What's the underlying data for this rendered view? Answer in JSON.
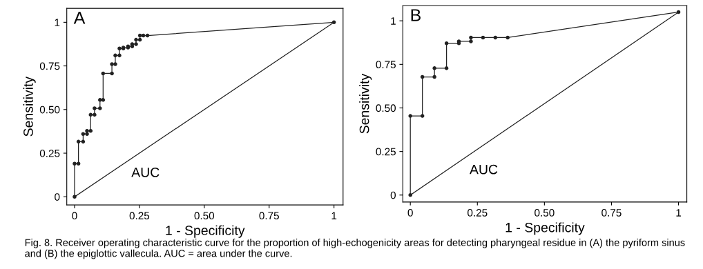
{
  "chart_data": [
    {
      "type": "line",
      "title": "A",
      "xlabel": "1 - Specificity",
      "ylabel": "Sensitivity",
      "series": [
        {
          "color": "#222222",
          "marker": "circle",
          "x": [
            0,
            0,
            0.015,
            0.015,
            0.033,
            0.033,
            0.048,
            0.048,
            0.062,
            0.062,
            0.077,
            0.077,
            0.098,
            0.098,
            0.11,
            0.11,
            0.144,
            0.144,
            0.157,
            0.157,
            0.173,
            0.173,
            0.188,
            0.188,
            0.206,
            0.206,
            0.222,
            0.222,
            0.237,
            0.237,
            0.252,
            0.252,
            0.265,
            0.281,
            1
          ],
          "values": [
            0,
            0.19,
            0.19,
            0.316,
            0.316,
            0.36,
            0.36,
            0.378,
            0.378,
            0.47,
            0.47,
            0.507,
            0.507,
            0.555,
            0.555,
            0.707,
            0.707,
            0.76,
            0.76,
            0.81,
            0.81,
            0.85,
            0.85,
            0.855,
            0.855,
            0.862,
            0.862,
            0.875,
            0.875,
            0.9,
            0.9,
            0.924,
            0.924,
            0.924,
            1
          ]
        },
        {
          "color": "#222222",
          "marker": "none",
          "x": [
            0,
            1
          ],
          "values": [
            0,
            1
          ]
        }
      ],
      "xlim": [
        -0.03,
        1.035
      ],
      "ylim": [
        -0.047,
        1.08
      ],
      "xticks": [
        0,
        0.25,
        {
          "value": 0.5,
          "label": "0.50"
        },
        0.75,
        1
      ],
      "yticks": [
        0,
        0.25,
        {
          "value": 0.5,
          "label": "0.50"
        },
        0.75,
        1
      ],
      "grid": false,
      "legend": false,
      "line_style": "solid",
      "annotations": [
        "AUC",
        "Fig. 8. Receiver operating characteristic curve for the proportion of high-echogenicity areas for detecting pharyngeal residue in (A) the pyriform sinus and (B) the epiglottic vallecula. AUC = area under the curve."
      ]
    },
    {
      "type": "line",
      "title": "B",
      "xlabel": "1 - Specificity",
      "ylabel": "Sensitivity",
      "series": [
        {
          "color": "#222222",
          "marker": "circle",
          "x": [
            0,
            0,
            0.045,
            0.045,
            0.09,
            0.09,
            0.135,
            0.135,
            0.181,
            0.181,
            0.226,
            0.226,
            0.271,
            0.317,
            0.363,
            1
          ],
          "values": [
            0,
            0.454,
            0.454,
            0.678,
            0.678,
            0.728,
            0.728,
            0.871,
            0.871,
            0.882,
            0.882,
            0.904,
            0.904,
            0.904,
            0.904,
            1.05
          ]
        },
        {
          "color": "#222222",
          "marker": "none",
          "x": [
            0,
            1
          ],
          "values": [
            0,
            1.05
          ]
        }
      ],
      "xlim": [
        -0.028,
        1.031
      ],
      "ylim": [
        -0.04,
        1.087
      ],
      "xticks": [
        0,
        0.25,
        {
          "value": 0.5,
          "label": "0.50"
        },
        0.75,
        1
      ],
      "yticks": [
        0,
        0.25,
        {
          "value": 0.5,
          "label": "0.50"
        },
        0.75,
        1
      ],
      "grid": false,
      "legend": false,
      "line_style": "solid",
      "annotations": [
        "AUC"
      ]
    }
  ]
}
